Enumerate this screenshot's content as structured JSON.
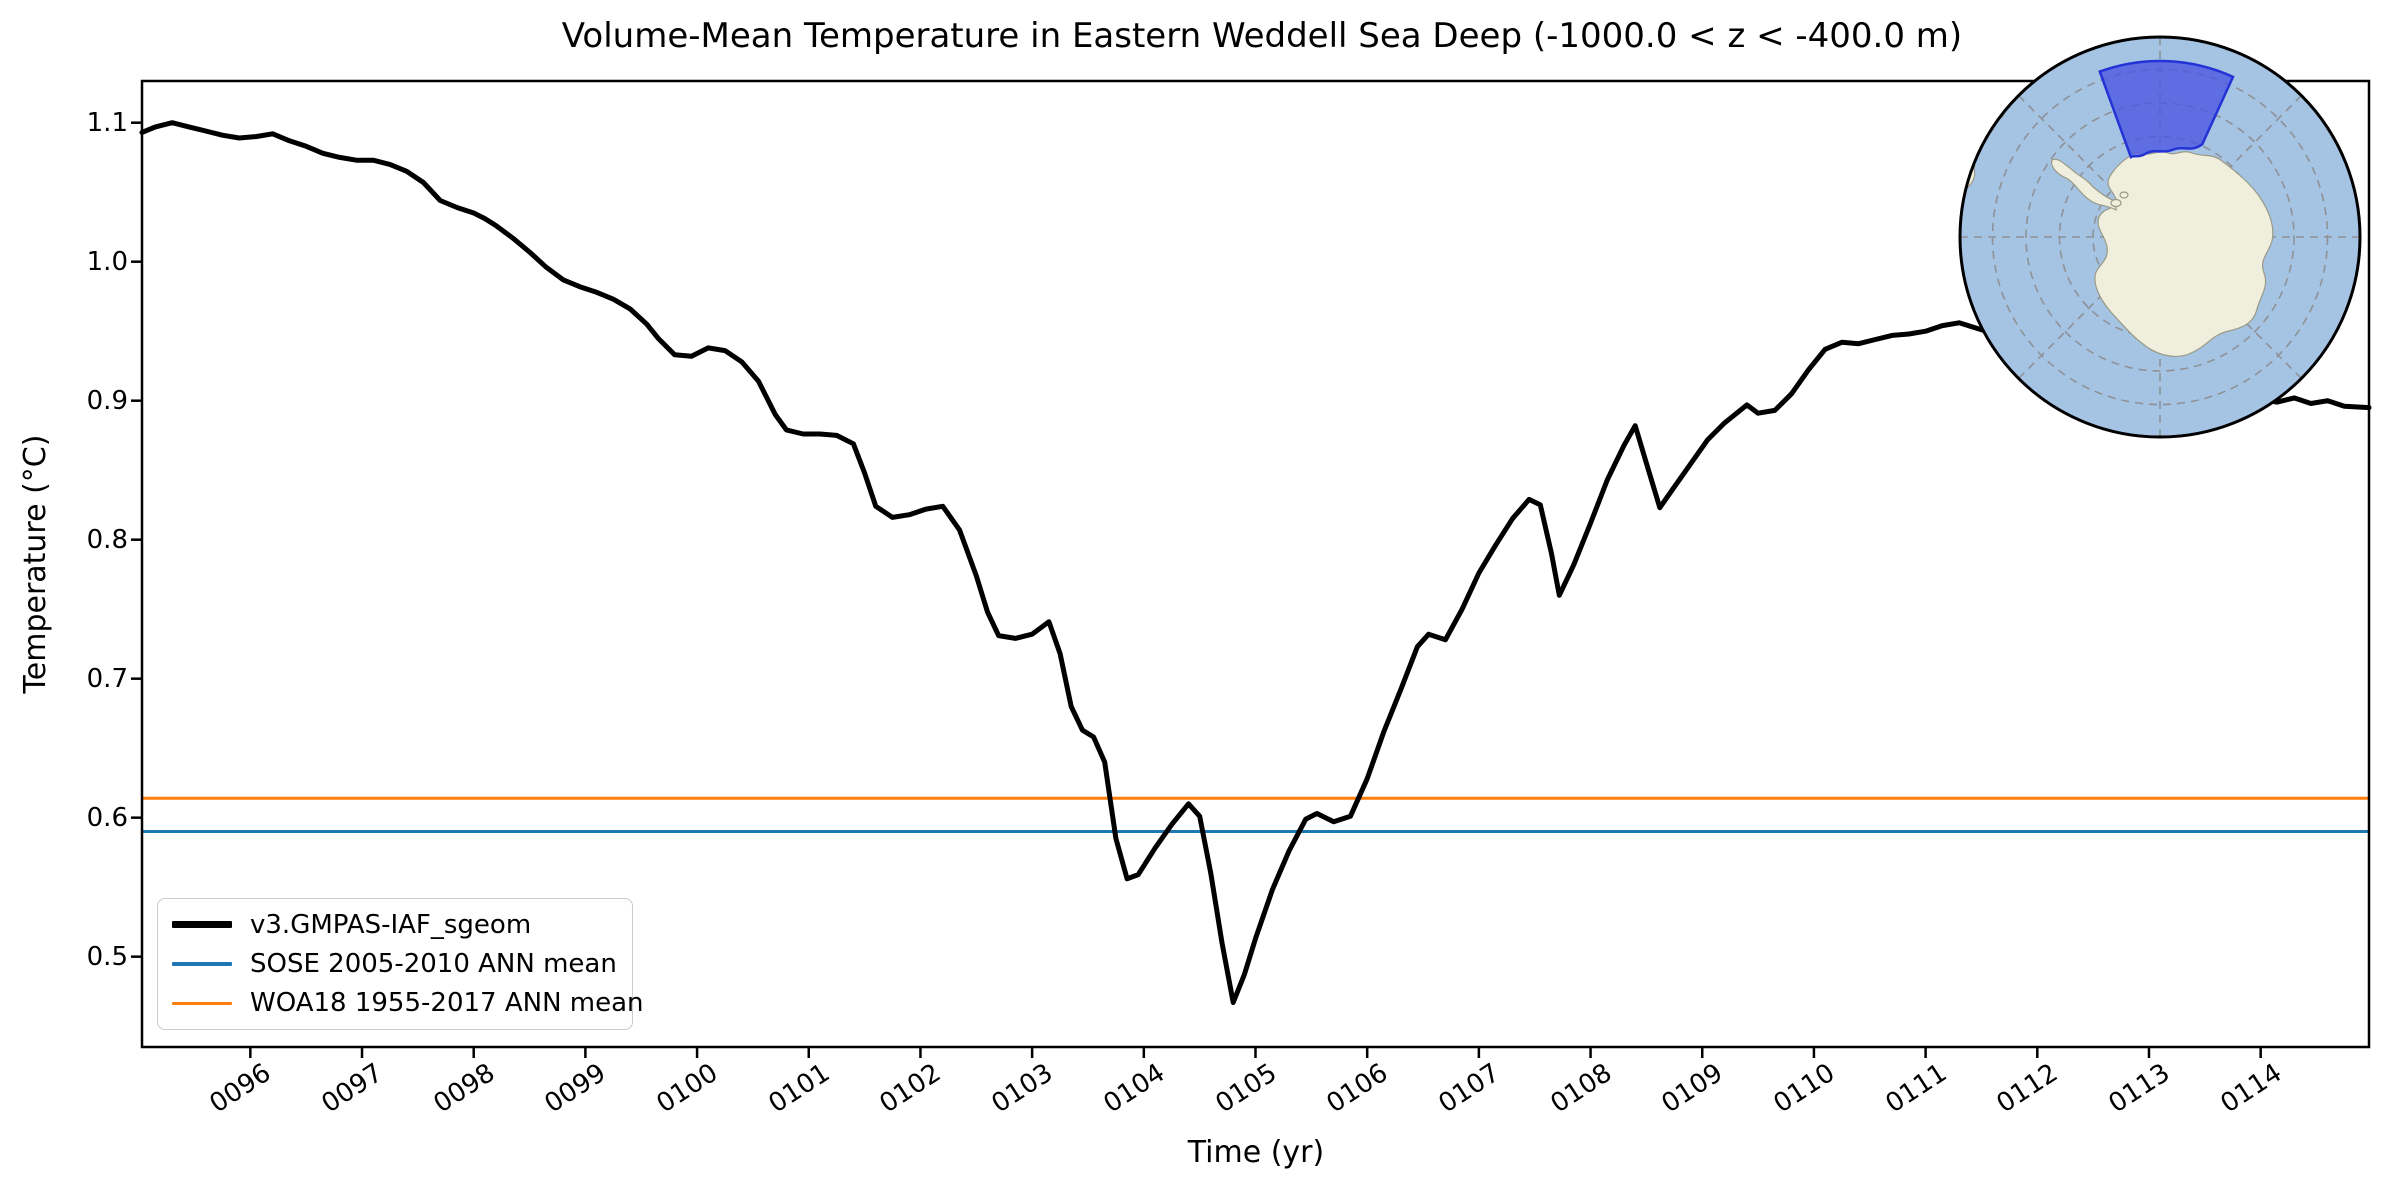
{
  "title": "Volume-Mean Temperature in Eastern Weddell Sea Deep (-1000.0 < z < -400.0 m)",
  "axes": {
    "xlabel": "Time (yr)",
    "ylabel": "Temperature (°C)"
  },
  "legend": {
    "entries": [
      {
        "label": "v3.GMPAS-IAF_sgeom",
        "color": "#000000",
        "thickness": 7
      },
      {
        "label": "SOSE 2005-2010 ANN mean",
        "color": "#1f77b4",
        "thickness": 3.5
      },
      {
        "label": "WOA18 1955-2017 ANN mean",
        "color": "#ff7f0e",
        "thickness": 3.5
      }
    ]
  },
  "map_inset": {
    "region_label": "eastern-weddell-sea-sector-highlight",
    "colors": {
      "ocean": "#a5c3e3",
      "land": "#f0eedd",
      "coast": "#9a9a85",
      "region_fill": "#4a55e2",
      "region_edge": "#2433d6",
      "graticule": "#8a8a8a",
      "border": "#000000"
    }
  },
  "chart_data": {
    "type": "line",
    "title": "Volume-Mean Temperature in Eastern Weddell Sea Deep (-1000.0 < z < -400.0 m)",
    "xlabel": "Time (yr)",
    "ylabel": "Temperature (°C)",
    "xlim": [
      95.03,
      114.97
    ],
    "ylim": [
      0.435,
      1.13
    ],
    "grid": false,
    "legend_position": "lower left",
    "x_ticks": [
      {
        "value": 96,
        "label": "0096"
      },
      {
        "value": 97,
        "label": "0097"
      },
      {
        "value": 98,
        "label": "0098"
      },
      {
        "value": 99,
        "label": "0099"
      },
      {
        "value": 100,
        "label": "0100"
      },
      {
        "value": 101,
        "label": "0101"
      },
      {
        "value": 102,
        "label": "0102"
      },
      {
        "value": 103,
        "label": "0103"
      },
      {
        "value": 104,
        "label": "0104"
      },
      {
        "value": 105,
        "label": "0105"
      },
      {
        "value": 106,
        "label": "0106"
      },
      {
        "value": 107,
        "label": "0107"
      },
      {
        "value": 108,
        "label": "0108"
      },
      {
        "value": 109,
        "label": "0109"
      },
      {
        "value": 110,
        "label": "0110"
      },
      {
        "value": 111,
        "label": "0111"
      },
      {
        "value": 112,
        "label": "0112"
      },
      {
        "value": 113,
        "label": "0113"
      },
      {
        "value": 114,
        "label": "0114"
      }
    ],
    "y_ticks": [
      {
        "value": 0.5,
        "label": "0.5"
      },
      {
        "value": 0.6,
        "label": "0.6"
      },
      {
        "value": 0.7,
        "label": "0.7"
      },
      {
        "value": 0.8,
        "label": "0.8"
      },
      {
        "value": 0.9,
        "label": "0.9"
      },
      {
        "value": 1.0,
        "label": "1.0"
      },
      {
        "value": 1.1,
        "label": "1.1"
      }
    ],
    "ref_lines": [
      {
        "name": "SOSE 2005-2010 ANN mean",
        "color": "#1f77b4",
        "value": 0.59,
        "linewidth": 3
      },
      {
        "name": "WOA18 1955-2017 ANN mean",
        "color": "#ff7f0e",
        "value": 0.614,
        "linewidth": 3
      }
    ],
    "series": [
      {
        "name": "v3.GMPAS-IAF_sgeom",
        "color": "#000000",
        "linewidth": 5,
        "points": [
          [
            95.03,
            1.093
          ],
          [
            95.15,
            1.097
          ],
          [
            95.3,
            1.1
          ],
          [
            95.45,
            1.097
          ],
          [
            95.6,
            1.094
          ],
          [
            95.75,
            1.091
          ],
          [
            95.9,
            1.089
          ],
          [
            96.05,
            1.09
          ],
          [
            96.2,
            1.092
          ],
          [
            96.35,
            1.087
          ],
          [
            96.5,
            1.083
          ],
          [
            96.65,
            1.078
          ],
          [
            96.8,
            1.075
          ],
          [
            96.95,
            1.073
          ],
          [
            97.1,
            1.073
          ],
          [
            97.25,
            1.07
          ],
          [
            97.4,
            1.065
          ],
          [
            97.55,
            1.057
          ],
          [
            97.7,
            1.044
          ],
          [
            97.85,
            1.039
          ],
          [
            98.0,
            1.035
          ],
          [
            98.1,
            1.031
          ],
          [
            98.2,
            1.026
          ],
          [
            98.35,
            1.017
          ],
          [
            98.5,
            1.007
          ],
          [
            98.65,
            0.996
          ],
          [
            98.8,
            0.987
          ],
          [
            98.95,
            0.982
          ],
          [
            99.1,
            0.978
          ],
          [
            99.25,
            0.973
          ],
          [
            99.4,
            0.966
          ],
          [
            99.55,
            0.955
          ],
          [
            99.65,
            0.945
          ],
          [
            99.8,
            0.933
          ],
          [
            99.95,
            0.932
          ],
          [
            100.1,
            0.938
          ],
          [
            100.25,
            0.936
          ],
          [
            100.4,
            0.928
          ],
          [
            100.55,
            0.914
          ],
          [
            100.7,
            0.89
          ],
          [
            100.8,
            0.879
          ],
          [
            100.95,
            0.876
          ],
          [
            101.1,
            0.876
          ],
          [
            101.25,
            0.875
          ],
          [
            101.4,
            0.869
          ],
          [
            101.5,
            0.848
          ],
          [
            101.6,
            0.824
          ],
          [
            101.75,
            0.816
          ],
          [
            101.9,
            0.818
          ],
          [
            102.05,
            0.822
          ],
          [
            102.2,
            0.824
          ],
          [
            102.35,
            0.807
          ],
          [
            102.5,
            0.774
          ],
          [
            102.6,
            0.748
          ],
          [
            102.7,
            0.731
          ],
          [
            102.85,
            0.729
          ],
          [
            103.0,
            0.732
          ],
          [
            103.15,
            0.741
          ],
          [
            103.25,
            0.718
          ],
          [
            103.35,
            0.68
          ],
          [
            103.45,
            0.663
          ],
          [
            103.55,
            0.658
          ],
          [
            103.65,
            0.64
          ],
          [
            103.75,
            0.585
          ],
          [
            103.85,
            0.556
          ],
          [
            103.95,
            0.559
          ],
          [
            104.1,
            0.578
          ],
          [
            104.25,
            0.595
          ],
          [
            104.4,
            0.61
          ],
          [
            104.5,
            0.601
          ],
          [
            104.6,
            0.56
          ],
          [
            104.7,
            0.51
          ],
          [
            104.8,
            0.467
          ],
          [
            104.9,
            0.487
          ],
          [
            105.0,
            0.513
          ],
          [
            105.15,
            0.548
          ],
          [
            105.3,
            0.576
          ],
          [
            105.45,
            0.599
          ],
          [
            105.55,
            0.603
          ],
          [
            105.7,
            0.597
          ],
          [
            105.85,
            0.601
          ],
          [
            106.0,
            0.628
          ],
          [
            106.15,
            0.662
          ],
          [
            106.3,
            0.692
          ],
          [
            106.45,
            0.723
          ],
          [
            106.55,
            0.732
          ],
          [
            106.7,
            0.728
          ],
          [
            106.85,
            0.75
          ],
          [
            107.0,
            0.776
          ],
          [
            107.15,
            0.796
          ],
          [
            107.3,
            0.815
          ],
          [
            107.45,
            0.829
          ],
          [
            107.55,
            0.825
          ],
          [
            107.65,
            0.79
          ],
          [
            107.72,
            0.76
          ],
          [
            107.85,
            0.782
          ],
          [
            108.0,
            0.812
          ],
          [
            108.15,
            0.843
          ],
          [
            108.3,
            0.868
          ],
          [
            108.4,
            0.882
          ],
          [
            108.5,
            0.855
          ],
          [
            108.62,
            0.823
          ],
          [
            108.75,
            0.838
          ],
          [
            108.9,
            0.855
          ],
          [
            109.05,
            0.872
          ],
          [
            109.2,
            0.884
          ],
          [
            109.4,
            0.897
          ],
          [
            109.5,
            0.891
          ],
          [
            109.65,
            0.893
          ],
          [
            109.8,
            0.905
          ],
          [
            109.95,
            0.922
          ],
          [
            110.1,
            0.937
          ],
          [
            110.25,
            0.942
          ],
          [
            110.4,
            0.941
          ],
          [
            110.55,
            0.944
          ],
          [
            110.7,
            0.947
          ],
          [
            110.85,
            0.948
          ],
          [
            111.0,
            0.95
          ],
          [
            111.15,
            0.954
          ],
          [
            111.3,
            0.956
          ],
          [
            111.5,
            0.951
          ],
          [
            111.7,
            0.946
          ],
          [
            112.0,
            0.938
          ],
          [
            112.3,
            0.929
          ],
          [
            112.6,
            0.921
          ],
          [
            112.9,
            0.914
          ],
          [
            113.2,
            0.909
          ],
          [
            113.5,
            0.905
          ],
          [
            113.8,
            0.903
          ],
          [
            114.0,
            0.901
          ],
          [
            114.15,
            0.899
          ],
          [
            114.3,
            0.902
          ],
          [
            114.45,
            0.898
          ],
          [
            114.6,
            0.9
          ],
          [
            114.75,
            0.896
          ],
          [
            114.97,
            0.895
          ]
        ]
      }
    ]
  }
}
